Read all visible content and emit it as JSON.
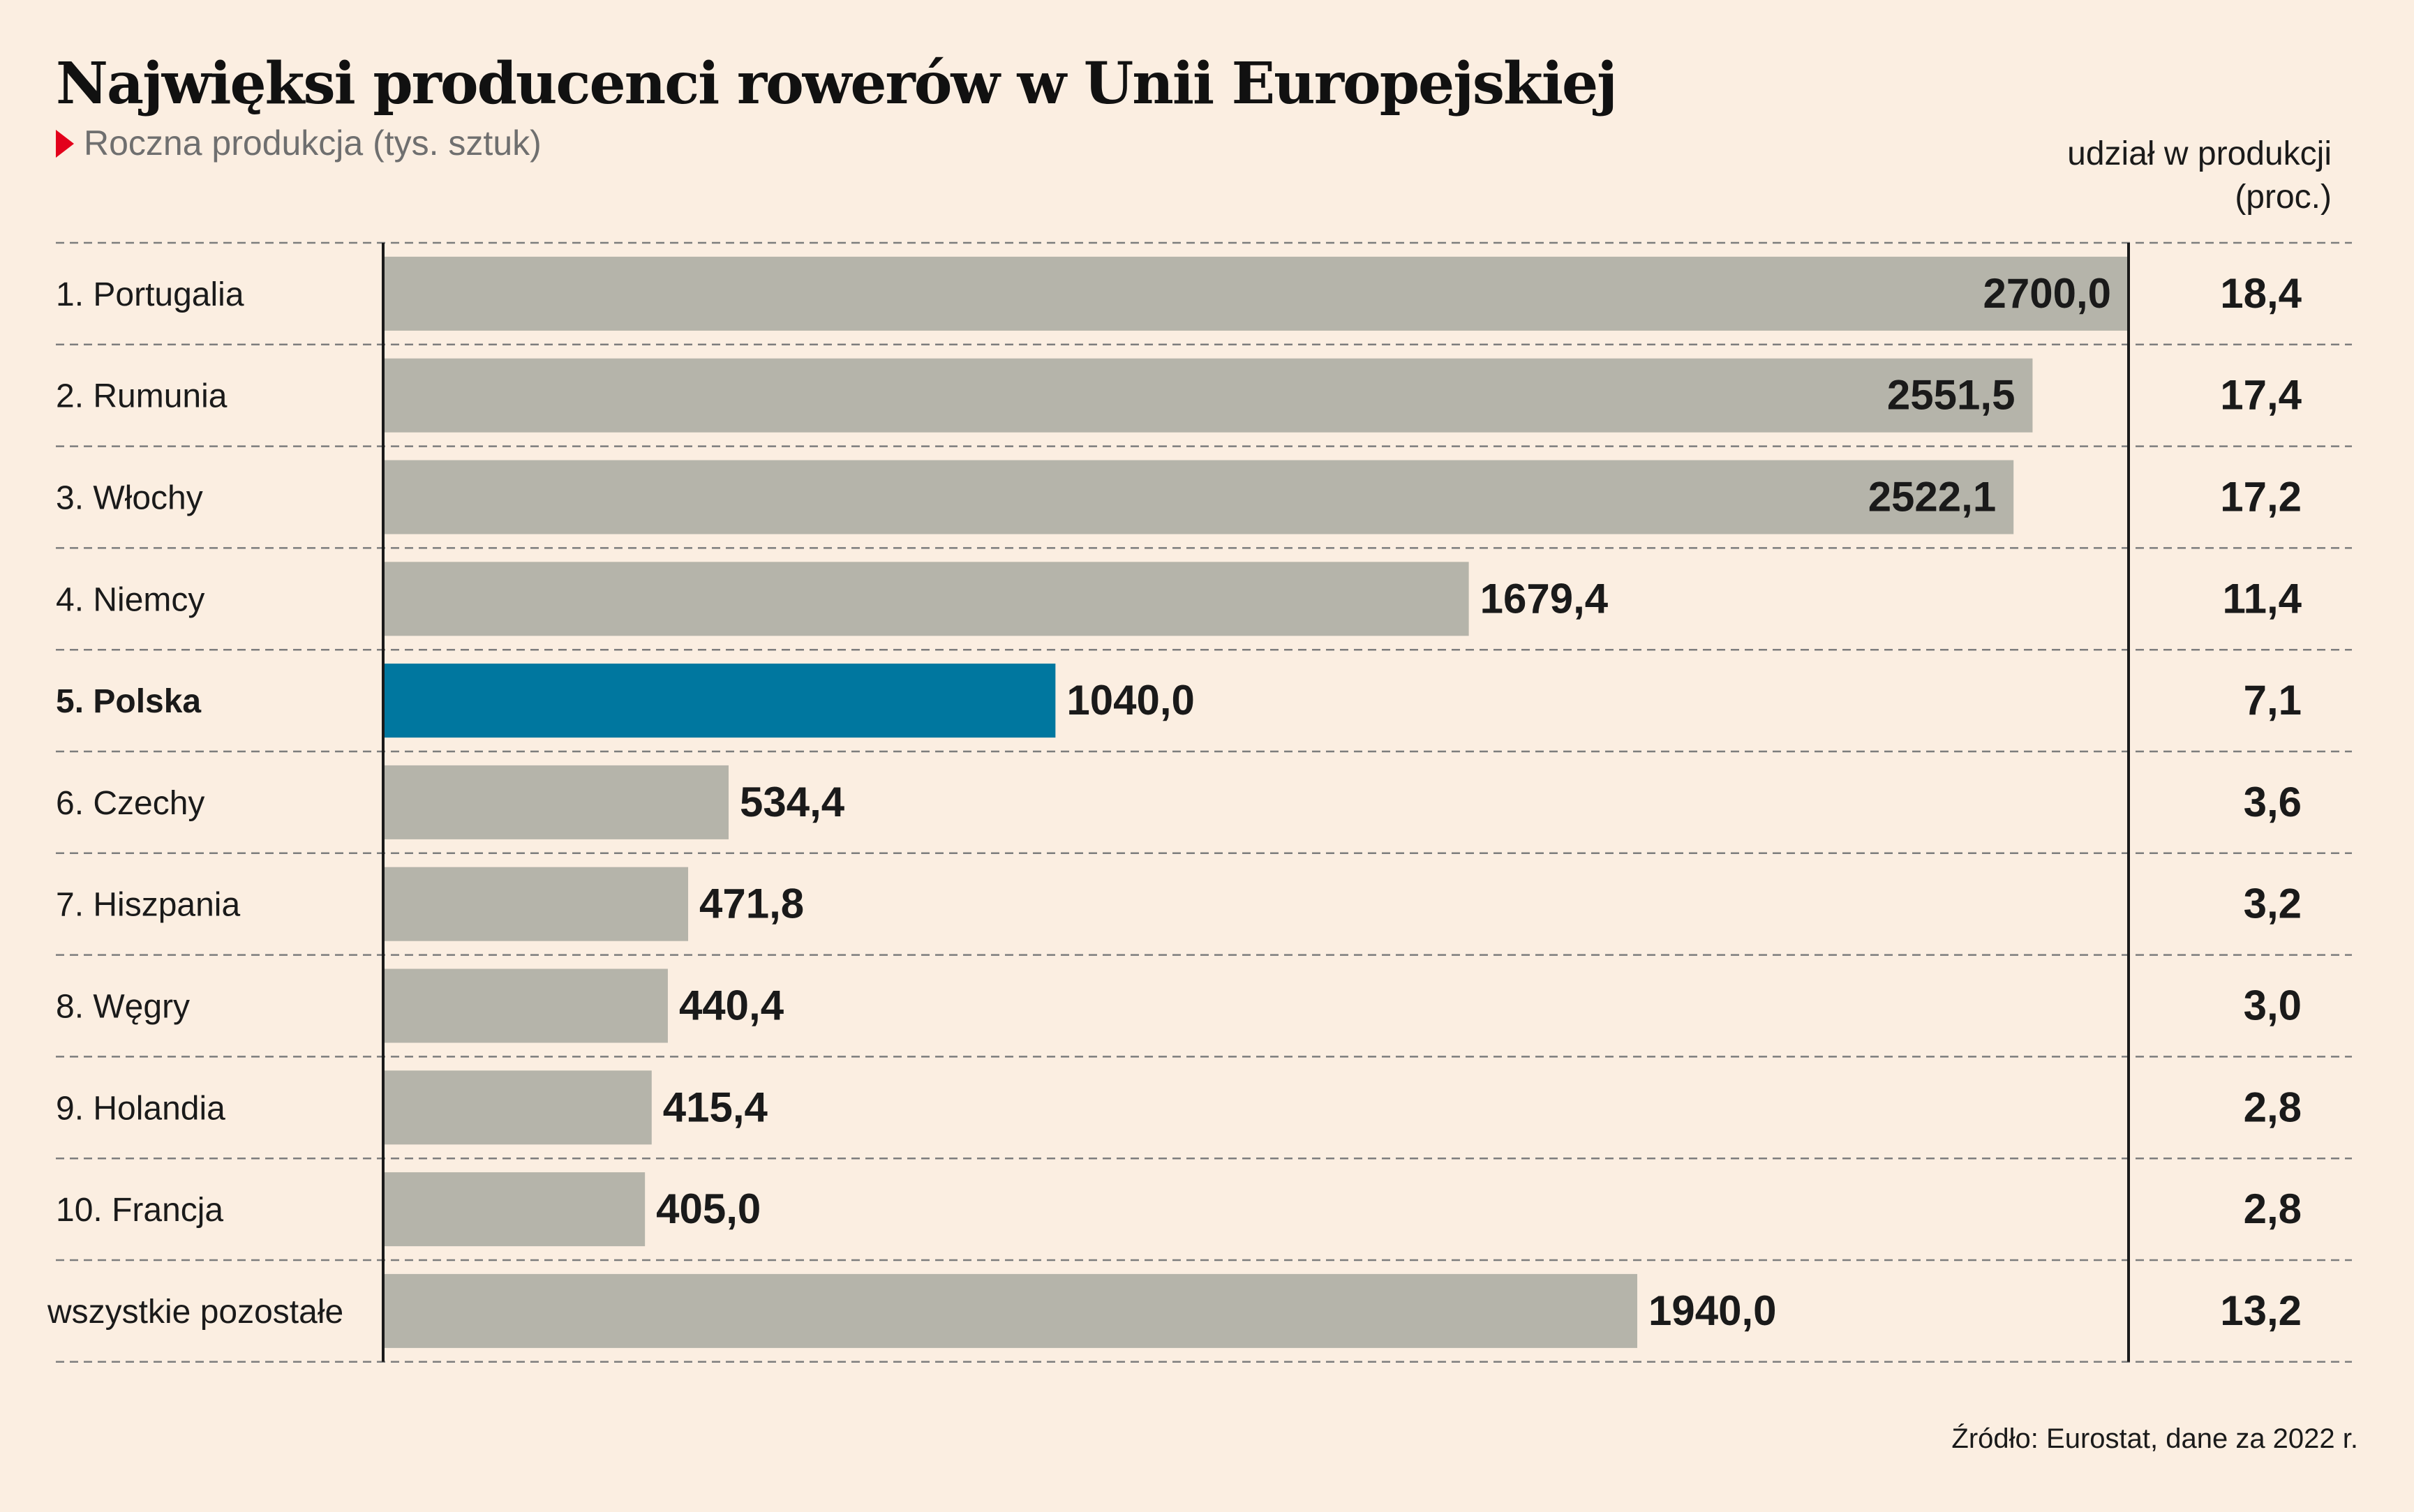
{
  "title": "Najwięksi producenci rowerów w Unii Europejskiej",
  "subtitle": "Roczna produkcja (tys. sztuk)",
  "share_header_line1": "udział w produkcji",
  "share_header_line2": "(proc.)",
  "source": "Źródło: Eurostat, dane za 2022 r.",
  "colors": {
    "bar": "#b5b4aa",
    "highlight": "#00779f",
    "background": "#fbeee1",
    "accent": "#e3001b"
  },
  "chart_data": {
    "type": "bar",
    "orientation": "horizontal",
    "title": "Najwięksi producenci rowerów w Unii Europejskiej",
    "subtitle": "Roczna produkcja (tys. sztuk)",
    "categories": [
      "1. Portugalia",
      "2. Rumunia",
      "3. Włochy",
      "4. Niemcy",
      "5. Polska",
      "6. Czechy",
      "7. Hiszpania",
      "8. Węgry",
      "9. Holandia",
      "10. Francja",
      "wszystkie pozostałe"
    ],
    "values": [
      2700.0,
      2551.5,
      2522.1,
      1679.4,
      1040.0,
      534.4,
      471.8,
      440.4,
      415.4,
      405.0,
      1940.0
    ],
    "value_labels": [
      "2700,0",
      "2551,5",
      "2522,1",
      "1679,4",
      "1040,0",
      "534,4",
      "471,8",
      "440,4",
      "415,4",
      "405,0",
      "1940,0"
    ],
    "share": [
      18.4,
      17.4,
      17.2,
      11.4,
      7.1,
      3.6,
      3.2,
      3.0,
      2.8,
      2.8,
      13.2
    ],
    "share_labels": [
      "18,4",
      "17,4",
      "17,2",
      "11,4",
      "7,1",
      "3,6",
      "3,2",
      "3,0",
      "2,8",
      "2,8",
      "13,2"
    ],
    "highlight_index": 4,
    "xlim": [
      0,
      2700
    ]
  }
}
